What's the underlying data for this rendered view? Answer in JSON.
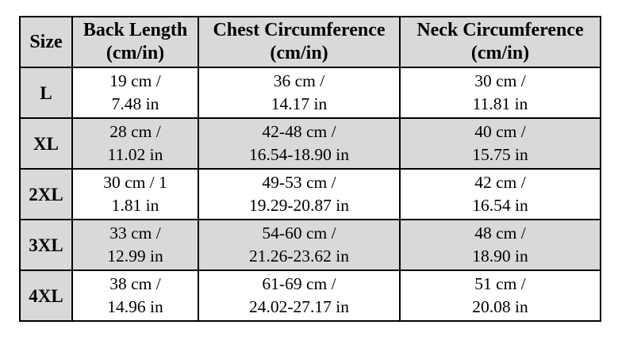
{
  "chart_data": {
    "type": "table",
    "columns": [
      {
        "label": "Size",
        "sublabel": ""
      },
      {
        "label": "Back Length",
        "sublabel": "(cm/in)"
      },
      {
        "label": "Chest Circumference",
        "sublabel": "(cm/in)"
      },
      {
        "label": "Neck Circumference",
        "sublabel": "(cm/in)"
      }
    ],
    "rows": [
      {
        "size": "L",
        "back_length": [
          "19 cm /",
          "7.48 in"
        ],
        "chest_circumference": [
          "36 cm /",
          "14.17 in"
        ],
        "neck_circumference": [
          "30 cm /",
          "11.81 in"
        ]
      },
      {
        "size": "XL",
        "back_length": [
          "28 cm /",
          "11.02 in"
        ],
        "chest_circumference": [
          "42-48 cm /",
          "16.54-18.90 in"
        ],
        "neck_circumference": [
          "40 cm /",
          "15.75 in"
        ]
      },
      {
        "size": "2XL",
        "back_length": [
          "30 cm / 1",
          "1.81 in"
        ],
        "chest_circumference": [
          "49-53 cm /",
          "19.29-20.87 in"
        ],
        "neck_circumference": [
          "42 cm /",
          "16.54 in"
        ]
      },
      {
        "size": "3XL",
        "back_length": [
          "33 cm /",
          "12.99 in"
        ],
        "chest_circumference": [
          "54-60 cm /",
          "21.26-23.62 in"
        ],
        "neck_circumference": [
          "48 cm /",
          "18.90 in"
        ]
      },
      {
        "size": "4XL",
        "back_length": [
          "38 cm /",
          "14.96 in"
        ],
        "chest_circumference": [
          "61-69 cm /",
          "24.02-27.17 in"
        ],
        "neck_circumference": [
          "51 cm /",
          "20.08 in"
        ]
      }
    ],
    "style": {
      "header_background": "#d9d9d9",
      "shaded_row_background": "#d9d9d9",
      "row_background": "#ffffff",
      "border_color": "#000000",
      "text_color": "#000000"
    }
  }
}
